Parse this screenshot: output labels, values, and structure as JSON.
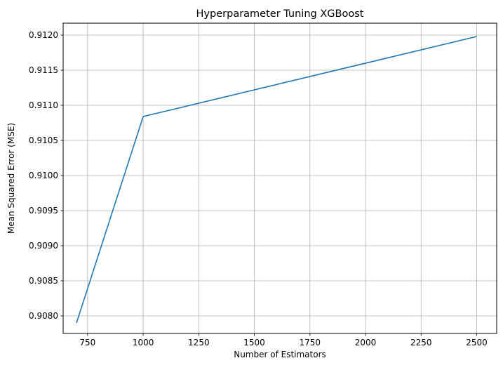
{
  "chart_data": {
    "type": "line",
    "title": "Hyperparameter Tuning XGBoost",
    "xlabel": "Number of Estimators",
    "ylabel": "Mean Squared Error (MSE)",
    "xlim": [
      640,
      2590
    ],
    "ylim": [
      0.90775,
      0.91217
    ],
    "grid": true,
    "x_ticks": [
      750,
      1000,
      1250,
      1500,
      1750,
      2000,
      2250,
      2500
    ],
    "x_tick_labels": [
      "750",
      "1000",
      "1250",
      "1500",
      "1750",
      "2000",
      "2250",
      "2500"
    ],
    "y_ticks": [
      0.908,
      0.9085,
      0.909,
      0.9095,
      0.91,
      0.9105,
      0.911,
      0.9115,
      0.912
    ],
    "y_tick_labels": [
      "0.9080",
      "0.9085",
      "0.9090",
      "0.9095",
      "0.9100",
      "0.9105",
      "0.9110",
      "0.9115",
      "0.9120"
    ],
    "series": [
      {
        "color": "#1f77b4",
        "x": [
          700,
          1000,
          2500
        ],
        "y": [
          0.9079,
          0.91084,
          0.91198
        ]
      }
    ]
  }
}
